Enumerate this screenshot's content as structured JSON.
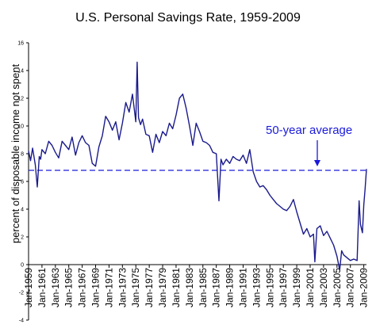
{
  "chart_data": {
    "type": "line",
    "title": "U.S. Personal Savings Rate, 1959-2009",
    "ylabel": "percent of disposable income not spent",
    "xlabel": "",
    "ylim": [
      -4,
      16
    ],
    "yticks": [
      -4,
      -2,
      0,
      2,
      4,
      6,
      8,
      10,
      12,
      14,
      16
    ],
    "xlim": [
      1959.0,
      2009.4
    ],
    "x_tick_labels": [
      "Jan-1959",
      "Jan-1961",
      "Jan-1963",
      "Jan-1965",
      "Jan-1967",
      "Jan-1969",
      "Jan-1971",
      "Jan-1973",
      "Jan-1975",
      "Jan-1977",
      "Jan-1979",
      "Jan-1981",
      "Jan-1983",
      "Jan-1985",
      "Jan-1987",
      "Jan-1989",
      "Jan-1991",
      "Jan-1993",
      "Jan-1995",
      "Jan-1997",
      "Jan-1999",
      "Jan-2001",
      "Jan-2003",
      "Jan-2005",
      "Jan-2007",
      "Jan-2009"
    ],
    "grid": false,
    "legend": "none",
    "series_color": "#1a1a8c",
    "average_line": {
      "value": 6.8,
      "label": "50-year average",
      "color": "#1a1adc"
    },
    "series": [
      {
        "x": [
          1959.0,
          1959.3,
          1959.6,
          1960.0,
          1960.3,
          1960.6,
          1960.8,
          1961.0,
          1961.5,
          1962.0,
          1962.5,
          1963.0,
          1963.5,
          1964.0,
          1964.5,
          1965.0,
          1965.5,
          1966.0,
          1966.5,
          1967.0,
          1967.5,
          1968.0,
          1968.5,
          1969.0,
          1969.5,
          1970.0,
          1970.5,
          1971.0,
          1971.5,
          1972.0,
          1972.5,
          1973.0,
          1973.5,
          1974.0,
          1974.5,
          1975.0,
          1975.2,
          1975.4,
          1975.7,
          1976.0,
          1976.5,
          1977.0,
          1977.5,
          1978.0,
          1978.5,
          1979.0,
          1979.5,
          1980.0,
          1980.5,
          1981.0,
          1981.5,
          1982.0,
          1982.5,
          1983.0,
          1983.5,
          1984.0,
          1984.5,
          1985.0,
          1985.5,
          1986.0,
          1986.5,
          1987.0,
          1987.4,
          1987.7,
          1988.0,
          1988.5,
          1989.0,
          1989.5,
          1990.0,
          1990.5,
          1991.0,
          1991.5,
          1992.0,
          1992.5,
          1993.0,
          1993.5,
          1994.0,
          1994.5,
          1995.0,
          1995.5,
          1996.0,
          1996.5,
          1997.0,
          1997.5,
          1998.0,
          1998.5,
          1999.0,
          1999.5,
          2000.0,
          2000.5,
          2001.0,
          2001.5,
          2001.7,
          2002.0,
          2002.5,
          2003.0,
          2003.5,
          2004.0,
          2004.5,
          2005.0,
          2005.4,
          2005.7,
          2006.0,
          2006.5,
          2007.0,
          2007.5,
          2008.0,
          2008.3,
          2008.5,
          2008.8,
          2009.0,
          2009.2,
          2009.4
        ],
        "values": [
          8.2,
          7.5,
          8.4,
          7.2,
          5.6,
          7.8,
          7.6,
          8.3,
          8.0,
          8.9,
          8.6,
          8.1,
          7.7,
          8.9,
          8.6,
          8.3,
          9.2,
          7.9,
          8.8,
          9.3,
          8.8,
          8.6,
          7.3,
          7.1,
          8.5,
          9.3,
          10.7,
          10.3,
          9.7,
          10.3,
          9.0,
          10.2,
          11.7,
          11.0,
          12.3,
          10.3,
          14.6,
          10.6,
          10.1,
          10.5,
          9.4,
          9.3,
          8.1,
          9.4,
          8.8,
          9.6,
          9.3,
          10.2,
          9.8,
          10.8,
          12.0,
          12.3,
          11.3,
          10.0,
          8.6,
          10.2,
          9.6,
          8.9,
          8.8,
          8.6,
          8.1,
          8.0,
          4.6,
          7.6,
          7.2,
          7.6,
          7.3,
          7.8,
          7.6,
          7.5,
          7.9,
          7.3,
          8.3,
          6.7,
          6.0,
          5.6,
          5.7,
          5.4,
          5.0,
          4.7,
          4.4,
          4.2,
          4.0,
          3.9,
          4.2,
          4.7,
          3.8,
          3.0,
          2.2,
          2.6,
          2.0,
          2.2,
          0.2,
          2.6,
          2.8,
          2.1,
          2.4,
          1.9,
          1.4,
          0.6,
          -0.4,
          1.0,
          0.7,
          0.5,
          0.3,
          0.4,
          0.3,
          4.6,
          2.9,
          2.3,
          4.3,
          5.5,
          6.9
        ]
      }
    ]
  }
}
